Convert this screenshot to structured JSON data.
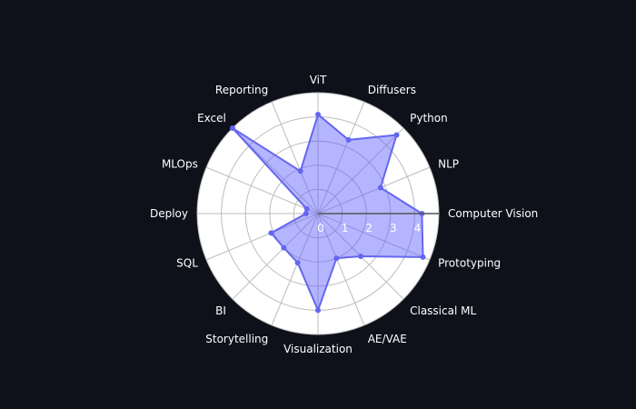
{
  "chart_data": {
    "type": "radar",
    "categories": [
      "Computer Vision",
      "NLP",
      "Python",
      "Diffusers",
      "ViT",
      "Reporting",
      "Excel",
      "MLOps",
      "Deploy",
      "SQL",
      "BI",
      "Storytelling",
      "Visualization",
      "AE/VAE",
      "Classical ML",
      "Prototyping"
    ],
    "values": [
      4.3,
      2.8,
      4.6,
      3.3,
      4.1,
      1.9,
      5.0,
      0.5,
      0.5,
      2.1,
      2.0,
      2.2,
      4.0,
      2.0,
      2.5,
      4.7
    ],
    "rlim": [
      0,
      5
    ],
    "radial_ticks": [
      "0",
      "1",
      "2",
      "3",
      "4"
    ],
    "grid": true,
    "colors": {
      "background": "#0f111a",
      "polar_bg": "#ffffff",
      "grid": "#bcbcbc",
      "fill": "#5b5bff",
      "stroke": "#6466f1",
      "text": "#ffffff"
    }
  }
}
